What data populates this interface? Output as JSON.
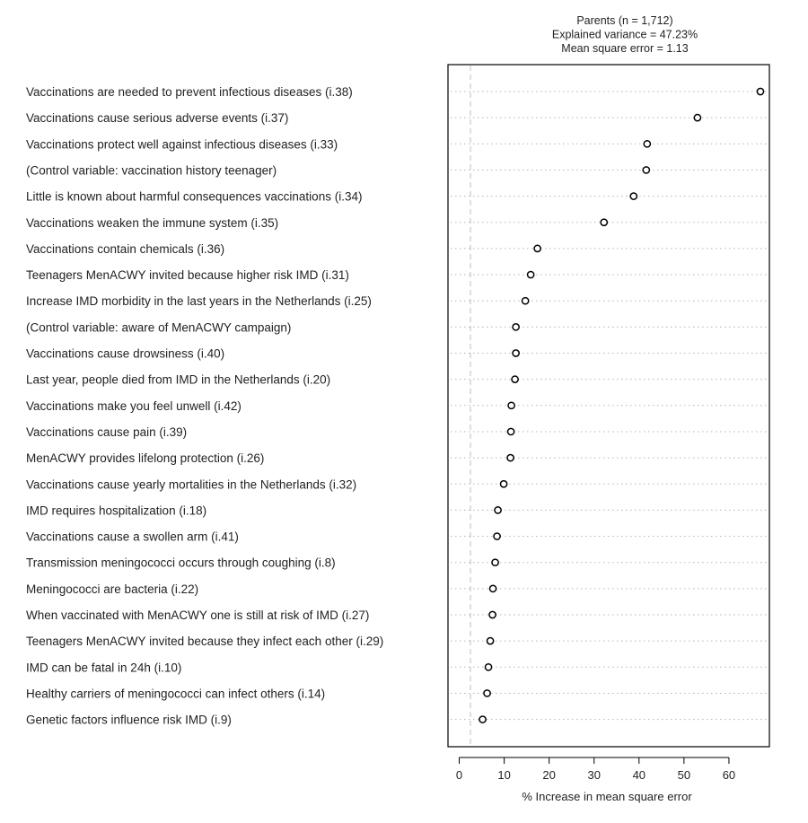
{
  "chart_data": {
    "type": "scatter",
    "header_lines": [
      "Parents  (n = 1,712)",
      "Explained variance = 47.23%",
      "Mean square error = 1.13"
    ],
    "xlabel": "% Increase in mean square error",
    "xlim": [
      -2.5,
      69
    ],
    "xticks": [
      0,
      10,
      20,
      30,
      40,
      50,
      60
    ],
    "reference_line_x": 2.5,
    "grid": "dotted horizontal guide per item",
    "items": [
      {
        "label": "Vaccinations are needed to prevent infectious diseases  (i.38)",
        "value": 67.0
      },
      {
        "label": "Vaccinations cause serious adverse events (i.37)",
        "value": 53.0
      },
      {
        "label": "Vaccinations protect well against infectious diseases (i.33)",
        "value": 41.8
      },
      {
        "label": "(Control variable: vaccination history teenager)",
        "value": 41.6
      },
      {
        "label": "Little is known about harmful consequences vaccinations (i.34)",
        "value": 38.8
      },
      {
        "label": "Vaccinations weaken the immune system (i.35)",
        "value": 32.2
      },
      {
        "label": "Vaccinations contain chemicals (i.36)",
        "value": 17.4
      },
      {
        "label": "Teenagers MenACWY invited because higher risk IMD (i.31)",
        "value": 15.9
      },
      {
        "label": "Increase IMD morbidity in the last years in the Netherlands  (i.25)",
        "value": 14.7
      },
      {
        "label": "(Control variable: aware of MenACWY campaign)",
        "value": 12.6
      },
      {
        "label": "Vaccinations cause drowsiness (i.40)",
        "value": 12.6
      },
      {
        "label": "Last year, people died from IMD in the Netherlands (i.20)",
        "value": 12.4
      },
      {
        "label": "Vaccinations make you feel unwell (i.42)",
        "value": 11.6
      },
      {
        "label": "Vaccinations cause pain (i.39)",
        "value": 11.5
      },
      {
        "label": "MenACWY provides lifelong protection (i.26)",
        "value": 11.4
      },
      {
        "label": "Vaccinations cause yearly mortalities in the Netherlands (i.32)",
        "value": 9.9
      },
      {
        "label": "IMD requires hospitalization (i.18)",
        "value": 8.6
      },
      {
        "label": "Vaccinations cause a swollen arm (i.41)",
        "value": 8.4
      },
      {
        "label": "Transmission meningococci occurs through coughing (i.8)",
        "value": 8.0
      },
      {
        "label": "Meningococci are bacteria (i.22)",
        "value": 7.5
      },
      {
        "label": "When vaccinated with MenACWY one is still at risk of IMD (i.27)",
        "value": 7.4
      },
      {
        "label": "Teenagers MenACWY invited because they infect each other (i.29)",
        "value": 6.9
      },
      {
        "label": "IMD can be fatal in 24h (i.10)",
        "value": 6.5
      },
      {
        "label": "Healthy carriers of meningococci can infect others (i.14)",
        "value": 6.2
      },
      {
        "label": "Genetic factors influence risk IMD (i.9)",
        "value": 5.2
      }
    ]
  }
}
